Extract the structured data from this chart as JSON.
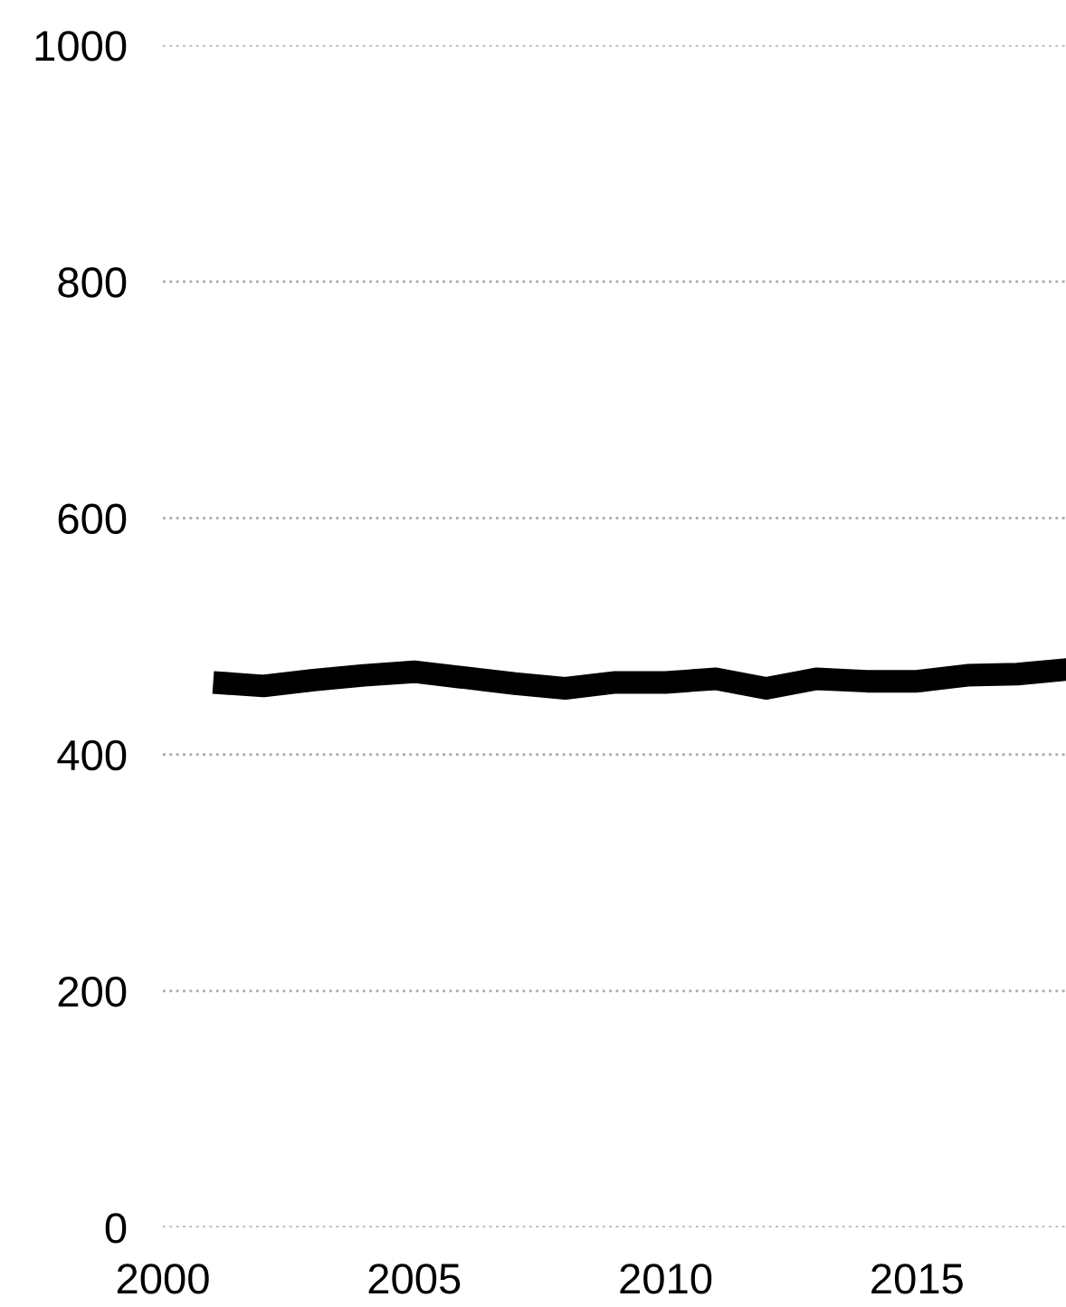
{
  "chart_data": {
    "type": "line",
    "x": [
      2001,
      2002,
      2003,
      2004,
      2005,
      2006,
      2007,
      2008,
      2009,
      2010,
      2011,
      2012,
      2013,
      2014,
      2015,
      2016,
      2017,
      2018
    ],
    "series": [
      {
        "color": "#000000",
        "values": [
          461,
          458,
          463,
          467,
          470,
          465,
          460,
          456,
          461,
          461,
          464,
          456,
          464,
          462,
          462,
          467,
          468,
          472
        ]
      }
    ],
    "xlim": [
      2000,
      2018
    ],
    "xticks": [
      2000,
      2005,
      2010,
      2015
    ],
    "ylim": [
      0,
      1000
    ],
    "yticks": [
      0,
      200,
      400,
      600,
      800,
      1000
    ],
    "grid": "y",
    "line_style": "solid",
    "marker": "none"
  }
}
